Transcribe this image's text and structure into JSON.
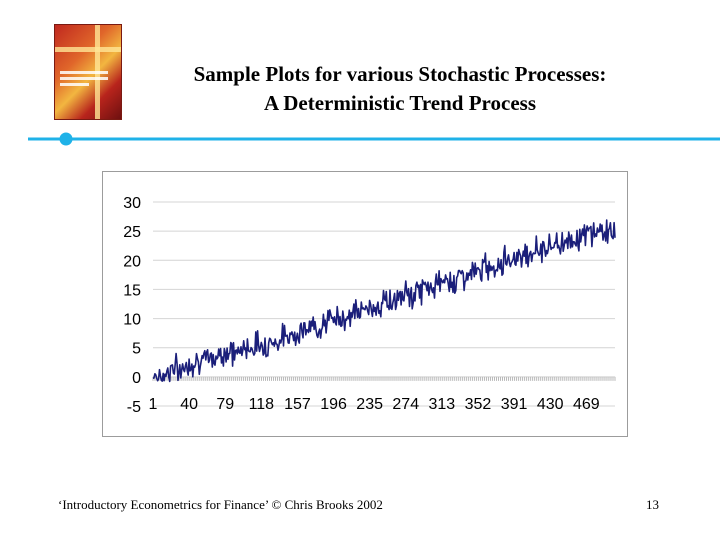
{
  "slide": {
    "title_line1": "Sample Plots for various Stochastic Processes:",
    "title_line2": "A Deterministic Trend Process",
    "footer_left": "‘Introductory Econometrics for Finance’ © Chris Brooks 2002",
    "page_number": "13"
  },
  "colors": {
    "series": "#1b1f7a",
    "accent_rule": "#1fb2e8",
    "grid": "#d4d4d4",
    "frame": "#9c9c9c"
  },
  "chart_data": {
    "type": "line",
    "title": "",
    "xlabel": "",
    "ylabel": "",
    "ylim": [
      -5,
      30
    ],
    "yticks": [
      30,
      25,
      20,
      15,
      10,
      5,
      0,
      -5
    ],
    "xticks": [
      "1",
      "40",
      "79",
      "118",
      "157",
      "196",
      "235",
      "274",
      "313",
      "352",
      "391",
      "430",
      "469"
    ],
    "x_range": [
      1,
      500
    ],
    "grid": "horizontal",
    "legend": "none",
    "series": [
      {
        "x_step": 10,
        "x_start": 1,
        "values": [
          0.5,
          0.1,
          1.5,
          1.0,
          2.5,
          3.0,
          2.5,
          3.8,
          4.5,
          4.0,
          5.0,
          5.5,
          5.5,
          6.0,
          6.5,
          7.5,
          7.8,
          8.2,
          9.0,
          9.5,
          10.0,
          10.5,
          11.0,
          11.5,
          12.0,
          12.8,
          13.0,
          13.8,
          14.0,
          15.0,
          15.5,
          16.0,
          16.5,
          17.0,
          17.5,
          18.0,
          18.8,
          19.2,
          20.0,
          20.5,
          21.0,
          21.5,
          22.0,
          22.5,
          23.0,
          23.5,
          24.0,
          24.5,
          25.0,
          25.0
        ]
      }
    ]
  }
}
